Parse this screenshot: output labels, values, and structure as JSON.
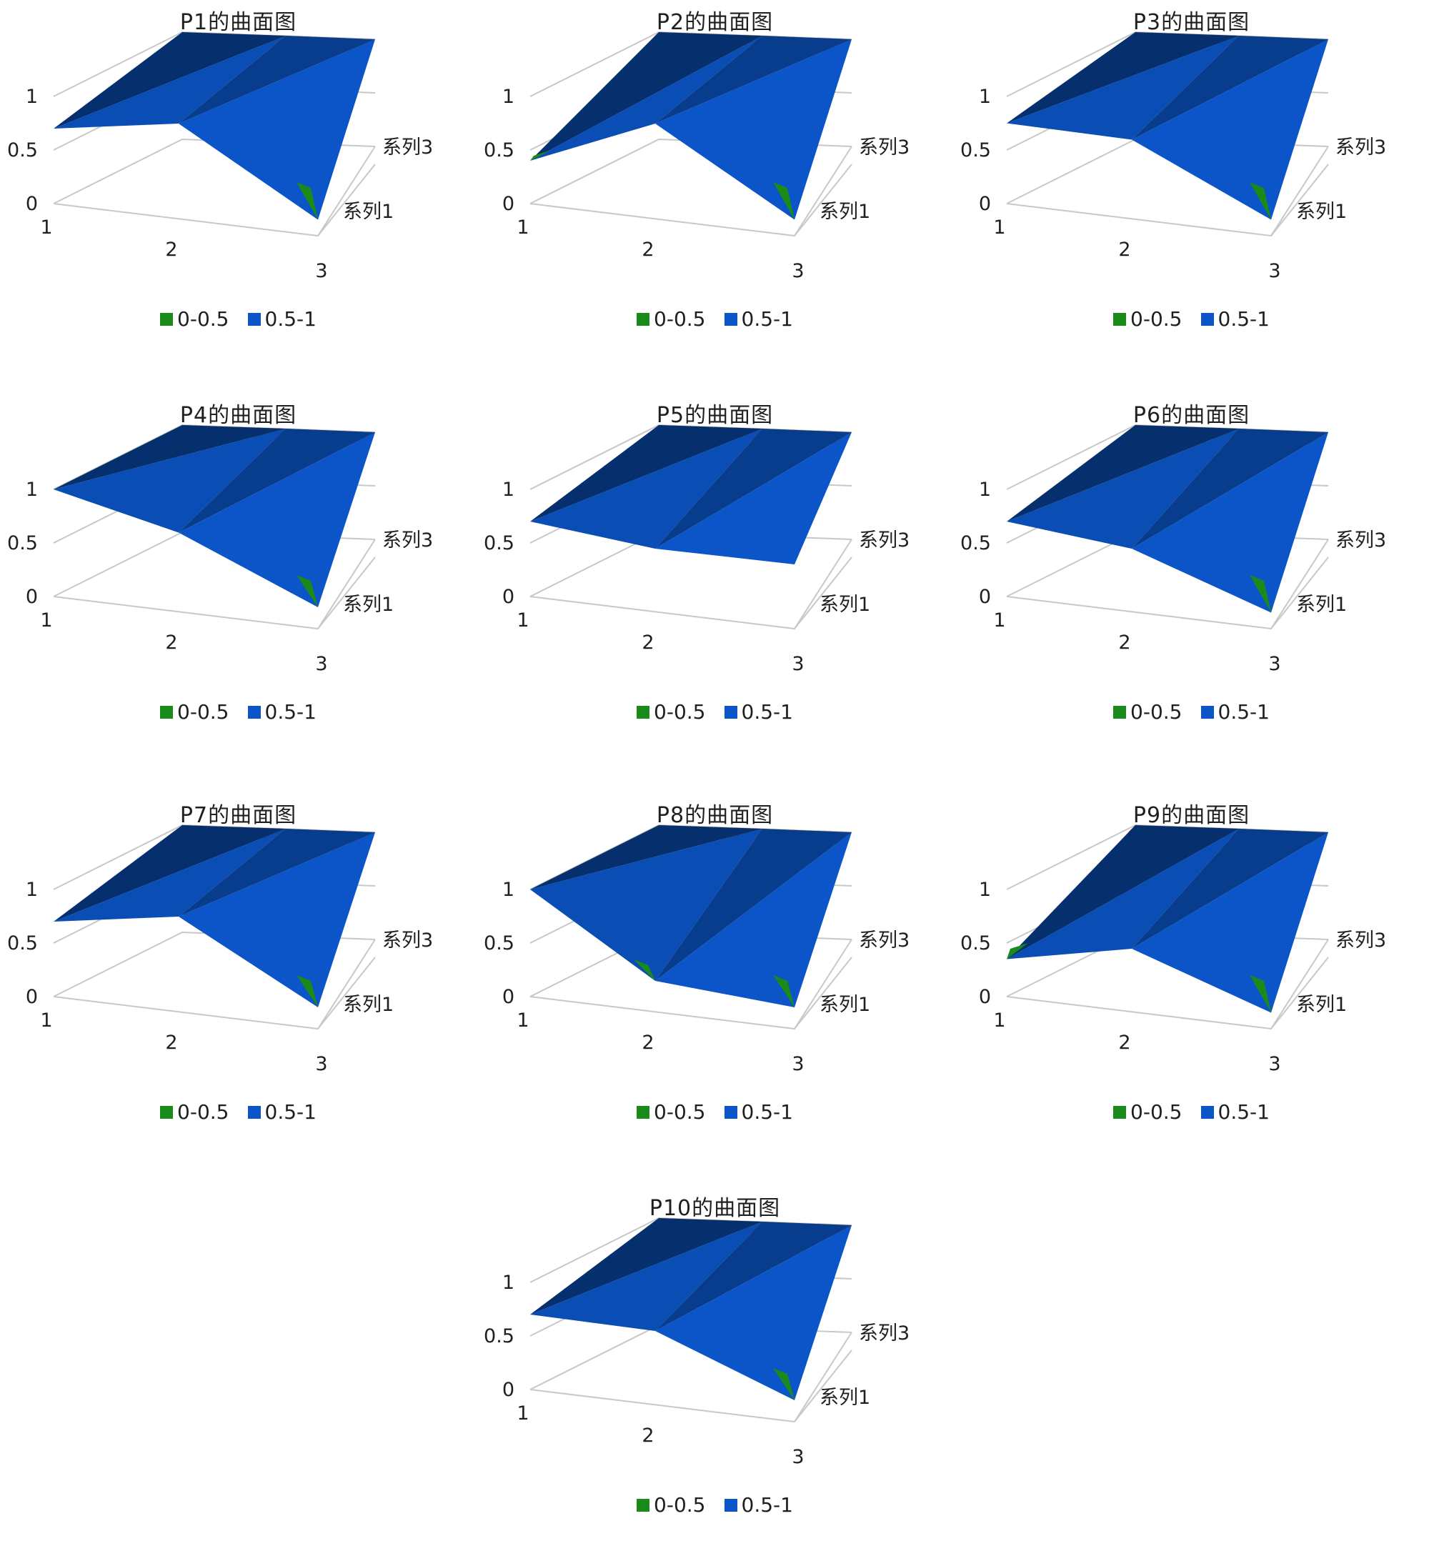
{
  "colors": {
    "low_band": "#1a8a1a",
    "high_band": "#0b55c8",
    "top_face": "#e8790f",
    "axis": "#c8c8c8"
  },
  "legend": [
    {
      "label": "0-0.5",
      "color": "#1a8a1a"
    },
    {
      "label": "0.5-1",
      "color": "#0b55c8"
    }
  ],
  "chart_data": [
    {
      "title": "P1的曲面图",
      "type": "surface",
      "x": [
        "1",
        "2",
        "3"
      ],
      "series_labels": [
        "系列1",
        "系列3"
      ],
      "z_ticks": [
        "0",
        "0.5",
        "1"
      ],
      "zlim": [
        0,
        1.2
      ],
      "front": [
        0.7,
        0.9,
        0.15
      ],
      "back": [
        1.0,
        1.0,
        1.0
      ]
    },
    {
      "title": "P2的曲面图",
      "type": "surface",
      "x": [
        "1",
        "2",
        "3"
      ],
      "series_labels": [
        "系列1",
        "系列3"
      ],
      "z_ticks": [
        "0",
        "0.5",
        "1"
      ],
      "zlim": [
        0,
        1.2
      ],
      "front": [
        0.4,
        0.9,
        0.15
      ],
      "back": [
        1.0,
        1.0,
        1.0
      ]
    },
    {
      "title": "P3的曲面图",
      "type": "surface",
      "x": [
        "1",
        "2",
        "3"
      ],
      "series_labels": [
        "系列1",
        "系列3"
      ],
      "z_ticks": [
        "0",
        "0.5",
        "1"
      ],
      "zlim": [
        0,
        1.2
      ],
      "front": [
        0.75,
        0.75,
        0.15
      ],
      "back": [
        1.0,
        1.0,
        1.0
      ]
    },
    {
      "title": "P4的曲面图",
      "type": "surface",
      "x": [
        "1",
        "2",
        "3"
      ],
      "series_labels": [
        "系列1",
        "系列3"
      ],
      "z_ticks": [
        "0",
        "0.5",
        "1"
      ],
      "zlim": [
        0,
        1.2
      ],
      "front": [
        1.0,
        0.75,
        0.2
      ],
      "back": [
        1.0,
        1.0,
        1.0
      ]
    },
    {
      "title": "P5的曲面图",
      "type": "surface",
      "x": [
        "1",
        "2",
        "3"
      ],
      "series_labels": [
        "系列1",
        "系列3"
      ],
      "z_ticks": [
        "0",
        "0.5",
        "1"
      ],
      "zlim": [
        0,
        1.2
      ],
      "front": [
        0.7,
        0.6,
        0.6
      ],
      "back": [
        1.0,
        1.0,
        1.0
      ]
    },
    {
      "title": "P6的曲面图",
      "type": "surface",
      "x": [
        "1",
        "2",
        "3"
      ],
      "series_labels": [
        "系列1",
        "系列3"
      ],
      "z_ticks": [
        "0",
        "0.5",
        "1"
      ],
      "zlim": [
        0,
        1.2
      ],
      "front": [
        0.7,
        0.6,
        0.15
      ],
      "back": [
        1.0,
        1.0,
        1.0
      ]
    },
    {
      "title": "P7的曲面图",
      "type": "surface",
      "x": [
        "1",
        "2",
        "3"
      ],
      "series_labels": [
        "系列1",
        "系列3"
      ],
      "z_ticks": [
        "0",
        "0.5",
        "1"
      ],
      "zlim": [
        0,
        1.2
      ],
      "front": [
        0.7,
        0.9,
        0.2
      ],
      "back": [
        1.0,
        1.0,
        1.0
      ]
    },
    {
      "title": "P8的曲面图",
      "type": "surface",
      "x": [
        "1",
        "2",
        "3"
      ],
      "series_labels": [
        "系列1",
        "系列3"
      ],
      "z_ticks": [
        "0",
        "0.5",
        "1"
      ],
      "zlim": [
        0,
        1.2
      ],
      "front": [
        1.0,
        0.3,
        0.2
      ],
      "back": [
        1.0,
        1.0,
        1.0
      ]
    },
    {
      "title": "P9的曲面图",
      "type": "surface",
      "x": [
        "1",
        "2",
        "3"
      ],
      "series_labels": [
        "系列1",
        "系列3"
      ],
      "z_ticks": [
        "0",
        "0.5",
        "1"
      ],
      "zlim": [
        0,
        1.2
      ],
      "front": [
        0.35,
        0.6,
        0.15
      ],
      "back": [
        1.0,
        1.0,
        1.0
      ]
    },
    {
      "title": "P10的曲面图",
      "type": "surface",
      "x": [
        "1",
        "2",
        "3"
      ],
      "series_labels": [
        "系列1",
        "系列3"
      ],
      "z_ticks": [
        "0",
        "0.5",
        "1"
      ],
      "zlim": [
        0,
        1.2
      ],
      "front": [
        0.7,
        0.7,
        0.2
      ],
      "back": [
        1.0,
        1.0,
        1.0
      ]
    }
  ]
}
